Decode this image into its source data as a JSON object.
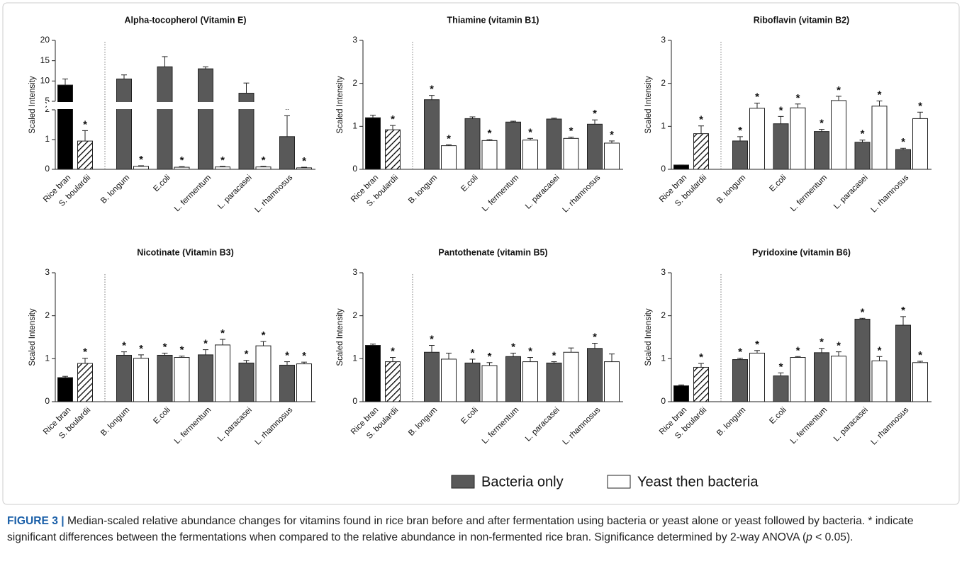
{
  "chart_data": [
    {
      "type": "bar",
      "title": "Alpha-tocopherol (Vitamin E)",
      "y_label": "Scaled Intensity",
      "categories": [
        "Rice bran",
        "S. boulardii",
        "B. longum",
        "E.coli",
        "L. fermentum",
        "L. paracasei",
        "L. rhamnosus"
      ],
      "values": [
        9,
        0.95,
        null,
        null,
        null,
        null,
        null
      ],
      "errors": [
        1.5,
        0.35,
        null,
        null,
        null,
        null,
        null
      ],
      "significant": [
        false,
        true,
        null,
        null,
        null,
        null,
        null
      ],
      "series": [
        {
          "values": [
            null,
            null,
            10.5,
            13.5,
            13,
            7,
            1.1
          ],
          "errors": [
            null,
            null,
            1,
            2.5,
            0.5,
            2.5,
            0.7
          ],
          "significant": [
            null,
            null,
            false,
            false,
            false,
            false,
            true
          ]
        },
        {
          "values": [
            null,
            null,
            0.1,
            0.07,
            0.08,
            0.08,
            0.05
          ],
          "errors": [
            null,
            null,
            0.02,
            0.02,
            0.02,
            0.02,
            0.02
          ],
          "significant": [
            null,
            null,
            true,
            true,
            true,
            true,
            true
          ]
        }
      ],
      "ylim": [
        0,
        20
      ],
      "ybreak": [
        2,
        5
      ],
      "yticks": [
        0,
        1,
        2,
        5,
        10,
        15,
        20
      ]
    },
    {
      "type": "bar",
      "title": "Thiamine (vitamin B1)",
      "y_label": "Scaled Intensity",
      "categories": [
        "Rice bran",
        "S. boulardii",
        "B. longum",
        "E.coli",
        "L. fermentum",
        "L. paracasei",
        "L. rhamnosus"
      ],
      "values": [
        1.2,
        0.92,
        null,
        null,
        null,
        null,
        null
      ],
      "errors": [
        0.06,
        0.1,
        null,
        null,
        null,
        null,
        null
      ],
      "significant": [
        false,
        true,
        null,
        null,
        null,
        null,
        null
      ],
      "series": [
        {
          "values": [
            null,
            null,
            1.62,
            1.18,
            1.1,
            1.17,
            1.05
          ],
          "errors": [
            null,
            null,
            0.1,
            0.04,
            0.02,
            0.02,
            0.1
          ],
          "significant": [
            null,
            null,
            true,
            false,
            false,
            false,
            true
          ]
        },
        {
          "values": [
            null,
            null,
            0.55,
            0.67,
            0.68,
            0.72,
            0.61
          ],
          "errors": [
            null,
            null,
            0.02,
            0.02,
            0.04,
            0.03,
            0.05
          ],
          "significant": [
            null,
            null,
            true,
            true,
            true,
            true,
            true
          ]
        }
      ],
      "ylim": [
        0,
        3
      ],
      "yticks": [
        0,
        1,
        2,
        3
      ]
    },
    {
      "type": "bar",
      "title": "Riboflavin (vitamin B2)",
      "y_label": "Scaled Intensity",
      "categories": [
        "Rice bran",
        "S. boulardii",
        "B. longum",
        "E.coli",
        "L. fermentum",
        "L. paracasei",
        "L. rhamnosus"
      ],
      "values": [
        0.1,
        0.83,
        null,
        null,
        null,
        null,
        null
      ],
      "errors": [
        0,
        0.18,
        null,
        null,
        null,
        null,
        null
      ],
      "significant": [
        false,
        true,
        null,
        null,
        null,
        null,
        null
      ],
      "series": [
        {
          "values": [
            null,
            null,
            0.66,
            1.06,
            0.88,
            0.63,
            0.46
          ],
          "errors": [
            null,
            null,
            0.1,
            0.17,
            0.05,
            0.05,
            0.03
          ],
          "significant": [
            null,
            null,
            true,
            true,
            true,
            true,
            true
          ]
        },
        {
          "values": [
            null,
            null,
            1.42,
            1.43,
            1.6,
            1.47,
            1.18
          ],
          "errors": [
            null,
            null,
            0.12,
            0.09,
            0.1,
            0.12,
            0.15
          ],
          "significant": [
            null,
            null,
            true,
            true,
            true,
            true,
            true
          ]
        }
      ],
      "ylim": [
        0,
        3
      ],
      "yticks": [
        0,
        1,
        2,
        3
      ]
    },
    {
      "type": "bar",
      "title": "Nicotinate (Vitamin B3)",
      "y_label": "Scaled Intensity",
      "categories": [
        "Rice bran",
        "S. boulardii",
        "B. longum",
        "E.coli",
        "L. fermentum",
        "L. paracasei",
        "L. rhamnosus"
      ],
      "values": [
        0.56,
        0.89,
        null,
        null,
        null,
        null,
        null
      ],
      "errors": [
        0.03,
        0.12,
        null,
        null,
        null,
        null,
        null
      ],
      "significant": [
        false,
        true,
        null,
        null,
        null,
        null,
        null
      ],
      "series": [
        {
          "values": [
            null,
            null,
            1.08,
            1.08,
            1.09,
            0.9,
            0.85
          ],
          "errors": [
            null,
            null,
            0.08,
            0.05,
            0.12,
            0.06,
            0.08
          ],
          "significant": [
            null,
            null,
            true,
            true,
            true,
            true,
            true
          ]
        },
        {
          "values": [
            null,
            null,
            1.01,
            1.03,
            1.32,
            1.3,
            0.88
          ],
          "errors": [
            null,
            null,
            0.08,
            0.03,
            0.13,
            0.1,
            0.04
          ],
          "significant": [
            null,
            null,
            true,
            true,
            true,
            true,
            true
          ]
        }
      ],
      "ylim": [
        0,
        3
      ],
      "yticks": [
        0,
        1,
        2,
        3
      ]
    },
    {
      "type": "bar",
      "title": "Pantothenate (vitamin B5)",
      "y_label": "Scaled Intensity",
      "categories": [
        "Rice bran",
        "S. boulardii",
        "B. longum",
        "E.coli",
        "L. fermentum",
        "L. paracasei",
        "L. rhamnosus"
      ],
      "values": [
        1.31,
        0.93,
        null,
        null,
        null,
        null,
        null
      ],
      "errors": [
        0.03,
        0.1,
        null,
        null,
        null,
        null,
        null
      ],
      "significant": [
        false,
        true,
        null,
        null,
        null,
        null,
        null
      ],
      "series": [
        {
          "values": [
            null,
            null,
            1.15,
            0.9,
            1.05,
            0.9,
            1.24
          ],
          "errors": [
            null,
            null,
            0.16,
            0.09,
            0.08,
            0.03,
            0.12
          ],
          "significant": [
            null,
            null,
            true,
            true,
            true,
            true,
            true
          ]
        },
        {
          "values": [
            null,
            null,
            0.99,
            0.84,
            0.93,
            1.15,
            0.93
          ],
          "errors": [
            null,
            null,
            0.14,
            0.07,
            0.1,
            0.1,
            0.18
          ],
          "significant": [
            null,
            null,
            false,
            true,
            true,
            false,
            false
          ]
        }
      ],
      "ylim": [
        0,
        3
      ],
      "yticks": [
        0,
        1,
        2,
        3
      ]
    },
    {
      "type": "bar",
      "title": "Pyridoxine (vitamin B6)",
      "y_label": "Scaled Intensity",
      "categories": [
        "Rice bran",
        "S. boulardii",
        "B. longum",
        "E.coli",
        "L. fermentum",
        "L. paracasei",
        "L. rhamnosus"
      ],
      "values": [
        0.37,
        0.8,
        null,
        null,
        null,
        null,
        null
      ],
      "errors": [
        0.02,
        0.09,
        null,
        null,
        null,
        null,
        null
      ],
      "significant": [
        false,
        true,
        null,
        null,
        null,
        null,
        null
      ],
      "series": [
        {
          "values": [
            null,
            null,
            0.98,
            0.6,
            1.14,
            1.92,
            1.78
          ],
          "errors": [
            null,
            null,
            0.03,
            0.07,
            0.1,
            0.02,
            0.2
          ],
          "significant": [
            null,
            null,
            true,
            true,
            true,
            true,
            true
          ]
        },
        {
          "values": [
            null,
            null,
            1.13,
            1.03,
            1.06,
            0.95,
            0.91
          ],
          "errors": [
            null,
            null,
            0.06,
            0.02,
            0.1,
            0.1,
            0.03
          ],
          "significant": [
            null,
            null,
            true,
            true,
            true,
            true,
            true
          ]
        }
      ],
      "ylim": [
        0,
        3
      ],
      "yticks": [
        0,
        1,
        2,
        3
      ]
    }
  ],
  "control_fills": [
    "#000000",
    "#ffffff"
  ],
  "control_hatch": [
    false,
    true
  ],
  "marker": "*",
  "legend": [
    {
      "name": "Bacteria only",
      "color": "#595959"
    },
    {
      "name": "Yeast then bacteria",
      "color": "#ffffff"
    }
  ],
  "caption": {
    "label": "FIGURE 3 |",
    "text": " Median-scaled relative abundance changes for vitamins found in rice bran before and after fermentation using bacteria or yeast alone or yeast followed by bacteria. * indicate significant differences between the fermentations when compared to the relative abundance in non-fermented rice bran. Significance determined by 2-way ANOVA (",
    "p": "p",
    "end": " < 0.05)."
  }
}
